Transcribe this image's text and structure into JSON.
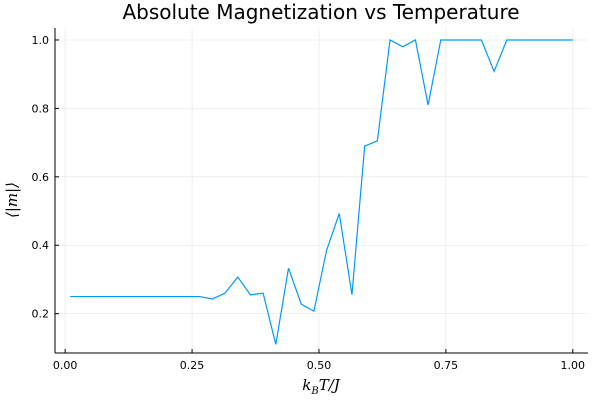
{
  "chart_data": {
    "type": "line",
    "title": "Absolute Magnetization vs Temperature",
    "xlabel": "k_BT/J",
    "ylabel": "⟨|m|⟩",
    "xlim": [
      -0.02,
      1.03
    ],
    "ylim": [
      0.085,
      1.035
    ],
    "xticks": [
      0.0,
      0.25,
      0.5,
      0.75,
      1.0
    ],
    "xtick_labels": [
      "0.00",
      "0.25",
      "0.50",
      "0.75",
      "1.00"
    ],
    "yticks": [
      0.2,
      0.4,
      0.6,
      0.8,
      1.0
    ],
    "ytick_labels": [
      "0.2",
      "0.4",
      "0.6",
      "0.8",
      "1.0"
    ],
    "grid": true,
    "legend": false,
    "series": [
      {
        "color": "#009AFA",
        "x": [
          0.01,
          0.03,
          0.06,
          0.09,
          0.12,
          0.15,
          0.18,
          0.21,
          0.24,
          0.265,
          0.29,
          0.315,
          0.34,
          0.365,
          0.39,
          0.415,
          0.44,
          0.465,
          0.49,
          0.515,
          0.54,
          0.565,
          0.59,
          0.615,
          0.64,
          0.665,
          0.69,
          0.715,
          0.74,
          0.765,
          0.79,
          0.82,
          0.845,
          0.87,
          0.9,
          0.95,
          1.0
        ],
        "y": [
          0.25,
          0.25,
          0.25,
          0.25,
          0.25,
          0.25,
          0.25,
          0.25,
          0.25,
          0.25,
          0.243,
          0.26,
          0.307,
          0.255,
          0.26,
          0.11,
          0.333,
          0.228,
          0.207,
          0.385,
          0.493,
          0.255,
          0.69,
          0.705,
          1.0,
          0.98,
          1.0,
          0.81,
          1.0,
          1.0,
          1.0,
          1.0,
          0.908,
          1.0,
          1.0,
          1.0,
          1.0
        ]
      }
    ]
  }
}
